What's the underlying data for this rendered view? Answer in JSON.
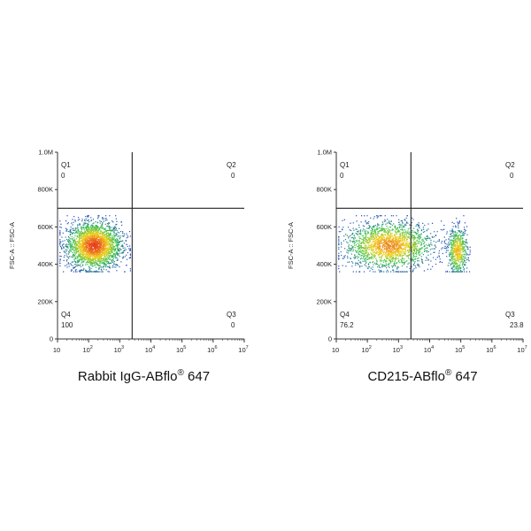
{
  "chart_data": [
    {
      "type": "scatter",
      "subtype": "flow-cytometry-density-plot",
      "xlabel": "Rabbit IgG-ABflo",
      "xlabel_mark": "®",
      "xlabel_suffix": " 647",
      "ylabel": "FSC-A :: FSC-A",
      "x_scale": "log",
      "xlim": [
        10,
        10000000
      ],
      "ylim": [
        0,
        1000000
      ],
      "x_ticks": [
        {
          "base": "10",
          "exp": ""
        },
        {
          "base": "10",
          "exp": "2"
        },
        {
          "base": "10",
          "exp": "3"
        },
        {
          "base": "10",
          "exp": "4"
        },
        {
          "base": "10",
          "exp": "5"
        },
        {
          "base": "10",
          "exp": "6"
        },
        {
          "base": "10",
          "exp": "7"
        }
      ],
      "x_tick_values": [
        10,
        100,
        1000,
        10000,
        100000,
        1000000,
        10000000
      ],
      "y_ticks": [
        "0",
        "200K",
        "400K",
        "600K",
        "800K",
        "1.0M"
      ],
      "y_tick_values": [
        0,
        200000,
        400000,
        600000,
        800000,
        1000000
      ],
      "gate": {
        "x": 2500,
        "y": 700000
      },
      "quadrants": [
        {
          "name": "Q1",
          "value": "0",
          "position": "top-left"
        },
        {
          "name": "Q2",
          "value": "0",
          "position": "top-right"
        },
        {
          "name": "Q3",
          "value": "0",
          "position": "bottom-right"
        },
        {
          "name": "Q4",
          "value": "100",
          "position": "bottom-left"
        }
      ],
      "populations": [
        {
          "x_center": 150,
          "y_center": 500000,
          "x_range": [
            12,
            2200
          ],
          "y_range": [
            360000,
            660000
          ],
          "share": 1.0
        }
      ],
      "colors": {
        "low": "#1f3bd6",
        "mid": "#2fbf4a",
        "high": "#f2d21b",
        "peak": "#e8401c"
      }
    },
    {
      "type": "scatter",
      "subtype": "flow-cytometry-density-plot",
      "xlabel": "CD215-ABflo",
      "xlabel_mark": "®",
      "xlabel_suffix": " 647",
      "ylabel": "FSC-A :: FSC-A",
      "x_scale": "log",
      "xlim": [
        10,
        10000000
      ],
      "ylim": [
        0,
        1000000
      ],
      "x_ticks": [
        {
          "base": "10",
          "exp": ""
        },
        {
          "base": "10",
          "exp": "2"
        },
        {
          "base": "10",
          "exp": "3"
        },
        {
          "base": "10",
          "exp": "4"
        },
        {
          "base": "10",
          "exp": "5"
        },
        {
          "base": "10",
          "exp": "6"
        },
        {
          "base": "10",
          "exp": "7"
        }
      ],
      "x_tick_values": [
        10,
        100,
        1000,
        10000,
        100000,
        1000000,
        10000000
      ],
      "y_ticks": [
        "0",
        "200K",
        "400K",
        "600K",
        "800K",
        "1.0M"
      ],
      "y_tick_values": [
        0,
        200000,
        400000,
        600000,
        800000,
        1000000
      ],
      "gate": {
        "x": 2500,
        "y": 700000
      },
      "quadrants": [
        {
          "name": "Q1",
          "value": "0",
          "position": "top-left"
        },
        {
          "name": "Q2",
          "value": "0",
          "position": "top-right"
        },
        {
          "name": "Q3",
          "value": "23.8",
          "position": "bottom-right"
        },
        {
          "name": "Q4",
          "value": "76.2",
          "position": "bottom-left"
        }
      ],
      "populations": [
        {
          "x_center": 500,
          "y_center": 500000,
          "x_range": [
            12,
            60000
          ],
          "y_range": [
            360000,
            660000
          ],
          "share": 0.762
        },
        {
          "x_center": 80000,
          "y_center": 470000,
          "x_range": [
            30000,
            200000
          ],
          "y_range": [
            360000,
            660000
          ],
          "share": 0.238
        }
      ],
      "colors": {
        "low": "#1f3bd6",
        "mid": "#2fbf4a",
        "high": "#f2d21b",
        "peak": "#e8401c"
      }
    }
  ]
}
